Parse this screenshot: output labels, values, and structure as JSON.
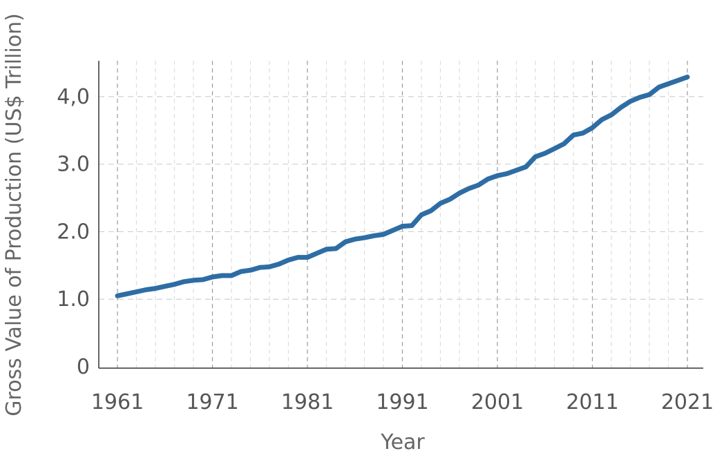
{
  "chart_data": {
    "type": "line",
    "xlabel": "Year",
    "ylabel": "Gross Value of Production (US$ Trillion)",
    "xlim": [
      1961,
      2021
    ],
    "ylim": [
      0,
      4.5
    ],
    "x_ticks": [
      1961,
      1971,
      1981,
      1991,
      2001,
      2011,
      2021
    ],
    "x_tick_labels": [
      "1961",
      "1971",
      "1981",
      "1991",
      "2001",
      "2011",
      "2021"
    ],
    "y_ticks": [
      0,
      1,
      2,
      3,
      4
    ],
    "y_tick_labels": [
      "0",
      "1.0",
      "2.0",
      "3.0",
      "4,0"
    ],
    "grid": true,
    "line_color": "#2e6da4",
    "series": [
      {
        "x": [
          1961,
          1962,
          1963,
          1964,
          1965,
          1966,
          1967,
          1968,
          1969,
          1970,
          1971,
          1972,
          1973,
          1974,
          1975,
          1976,
          1977,
          1978,
          1979,
          1980,
          1981,
          1982,
          1983,
          1984,
          1985,
          1986,
          1987,
          1988,
          1989,
          1990,
          1991,
          1992,
          1993,
          1994,
          1995,
          1996,
          1997,
          1998,
          1999,
          2000,
          2001,
          2002,
          2003,
          2004,
          2005,
          2006,
          2007,
          2008,
          2009,
          2010,
          2011,
          2012,
          2013,
          2014,
          2015,
          2016,
          2017,
          2018,
          2019,
          2020,
          2021
        ],
        "values": [
          1.05,
          1.08,
          1.11,
          1.14,
          1.16,
          1.19,
          1.22,
          1.26,
          1.28,
          1.29,
          1.33,
          1.35,
          1.35,
          1.41,
          1.43,
          1.47,
          1.48,
          1.52,
          1.58,
          1.62,
          1.62,
          1.68,
          1.74,
          1.75,
          1.85,
          1.89,
          1.91,
          1.94,
          1.96,
          2.02,
          2.08,
          2.09,
          2.25,
          2.31,
          2.42,
          2.48,
          2.57,
          2.64,
          2.69,
          2.78,
          2.83,
          2.86,
          2.91,
          2.96,
          3.11,
          3.16,
          3.23,
          3.3,
          3.43,
          3.46,
          3.54,
          3.66,
          3.73,
          3.84,
          3.93,
          3.99,
          4.03,
          4.14,
          4.19,
          4.24,
          4.29
        ]
      }
    ]
  }
}
